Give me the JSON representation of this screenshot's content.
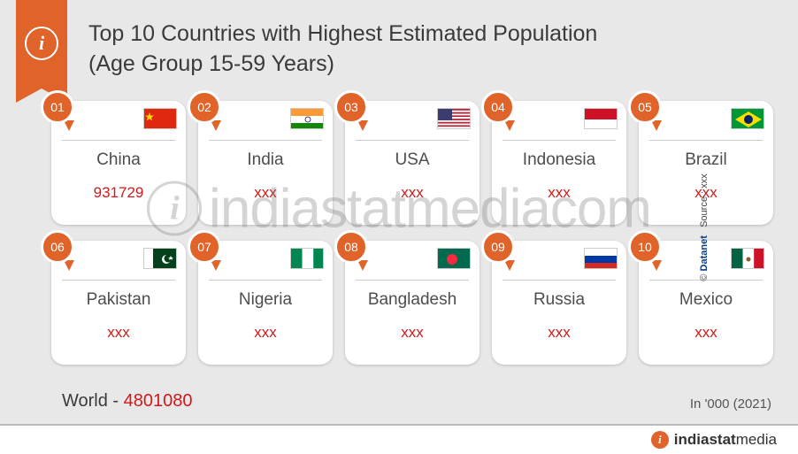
{
  "title_line1": "Top 10 Countries with Highest Estimated Population",
  "title_line2": "(Age Group 15-59 Years)",
  "colors": {
    "accent": "#e0632a",
    "value": "#d11a1a",
    "background": "#e8e8e8",
    "card_bg": "#ffffff",
    "text": "#3a3a3a"
  },
  "countries": [
    {
      "rank": "01",
      "name": "China",
      "value": "931729",
      "flag": "cn"
    },
    {
      "rank": "02",
      "name": "India",
      "value": "xxx",
      "flag": "in"
    },
    {
      "rank": "03",
      "name": "USA",
      "value": "xxx",
      "flag": "us"
    },
    {
      "rank": "04",
      "name": "Indonesia",
      "value": "xxx",
      "flag": "id"
    },
    {
      "rank": "05",
      "name": "Brazil",
      "value": "xxx",
      "flag": "br"
    },
    {
      "rank": "06",
      "name": "Pakistan",
      "value": "xxx",
      "flag": "pk"
    },
    {
      "rank": "07",
      "name": "Nigeria",
      "value": "xxx",
      "flag": "ng"
    },
    {
      "rank": "08",
      "name": "Bangladesh",
      "value": "xxx",
      "flag": "bd"
    },
    {
      "rank": "09",
      "name": "Russia",
      "value": "xxx",
      "flag": "ru"
    },
    {
      "rank": "10",
      "name": "Mexico",
      "value": "xxx",
      "flag": "mx"
    }
  ],
  "summary": {
    "label": "World",
    "sep": "  -  ",
    "value": "4801080"
  },
  "unit": "In '000 (2021)",
  "footer_brand": {
    "bold": "indiastat",
    "rest": "media"
  },
  "watermark": "indiastatmediacom",
  "side_source": {
    "brand": "Datanet",
    "text": "Source : xxx"
  }
}
